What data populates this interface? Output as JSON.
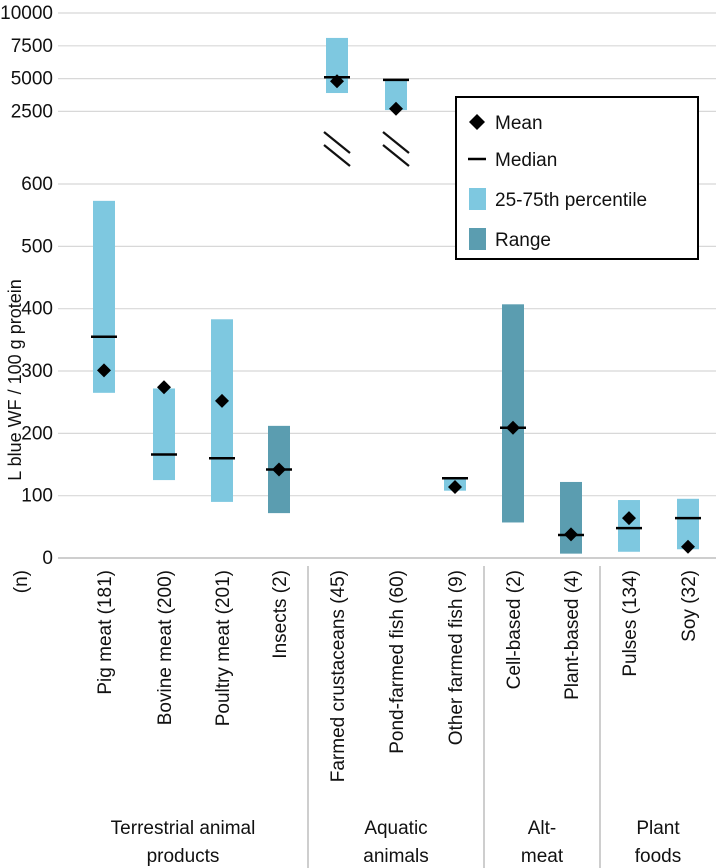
{
  "chart_data": {
    "type": "range-bar",
    "ylabel": "L blue WF / 100 g protein",
    "n_label": "(n)",
    "axis_break": true,
    "upper_ticks": [
      "10000",
      "7500",
      "5000",
      "2500"
    ],
    "lower_ticks": [
      "600",
      "500",
      "400",
      "300",
      "200",
      "100",
      "0"
    ],
    "grid": true,
    "legend": {
      "position": "top-right",
      "entries": [
        "Mean",
        "Median",
        "25-75th percentile",
        "Range"
      ]
    },
    "colors": {
      "percentile": "#7ec8e0",
      "range": "#5b9db0",
      "marker": "#000000",
      "grid": "#d8d8d8"
    },
    "items": [
      {
        "label": "Pig meat (181)",
        "group": 0,
        "stat": "percentile",
        "low": 265,
        "high": 573,
        "median": 355,
        "mean": 301
      },
      {
        "label": "Bovine meat (200)",
        "group": 0,
        "stat": "percentile",
        "low": 125,
        "high": 272,
        "median": 166,
        "mean": 274
      },
      {
        "label": "Poultry meat (201)",
        "group": 0,
        "stat": "percentile",
        "low": 90,
        "high": 383,
        "median": 160,
        "mean": 252
      },
      {
        "label": "Insects (2)",
        "group": 0,
        "stat": "range",
        "low": 72,
        "high": 212,
        "median": 142,
        "mean": 142
      },
      {
        "label": "Farmed crustaceans (45)",
        "group": 1,
        "stat": "percentile",
        "low": 3900,
        "high": 8100,
        "median": 5100,
        "mean": 4800
      },
      {
        "label": "Pond-farmed fish (60)",
        "group": 1,
        "stat": "percentile",
        "low": 2600,
        "high": 4900,
        "median": 4900,
        "mean": 2700
      },
      {
        "label": "Other farmed fish (9)",
        "group": 1,
        "stat": "percentile",
        "low": 108,
        "high": 130,
        "median": 128,
        "mean": 114
      },
      {
        "label": "Cell-based (2)",
        "group": 2,
        "stat": "range",
        "low": 57,
        "high": 407,
        "median": 209,
        "mean": 209
      },
      {
        "label": "Plant-based (4)",
        "group": 2,
        "stat": "range",
        "low": 7,
        "high": 122,
        "median": 37,
        "mean": 38
      },
      {
        "label": "Pulses (134)",
        "group": 3,
        "stat": "percentile",
        "low": 10,
        "high": 93,
        "median": 48,
        "mean": 64
      },
      {
        "label": "Soy (32)",
        "group": 3,
        "stat": "percentile",
        "low": 14,
        "high": 95,
        "median": 64,
        "mean": 18
      }
    ],
    "groups": [
      {
        "line1": "Terrestrial animal",
        "line2": "products"
      },
      {
        "line1": "Aquatic",
        "line2": "animals"
      },
      {
        "line1": "Alt-",
        "line2": "meat"
      },
      {
        "line1": "Plant",
        "line2": "foods"
      }
    ]
  }
}
